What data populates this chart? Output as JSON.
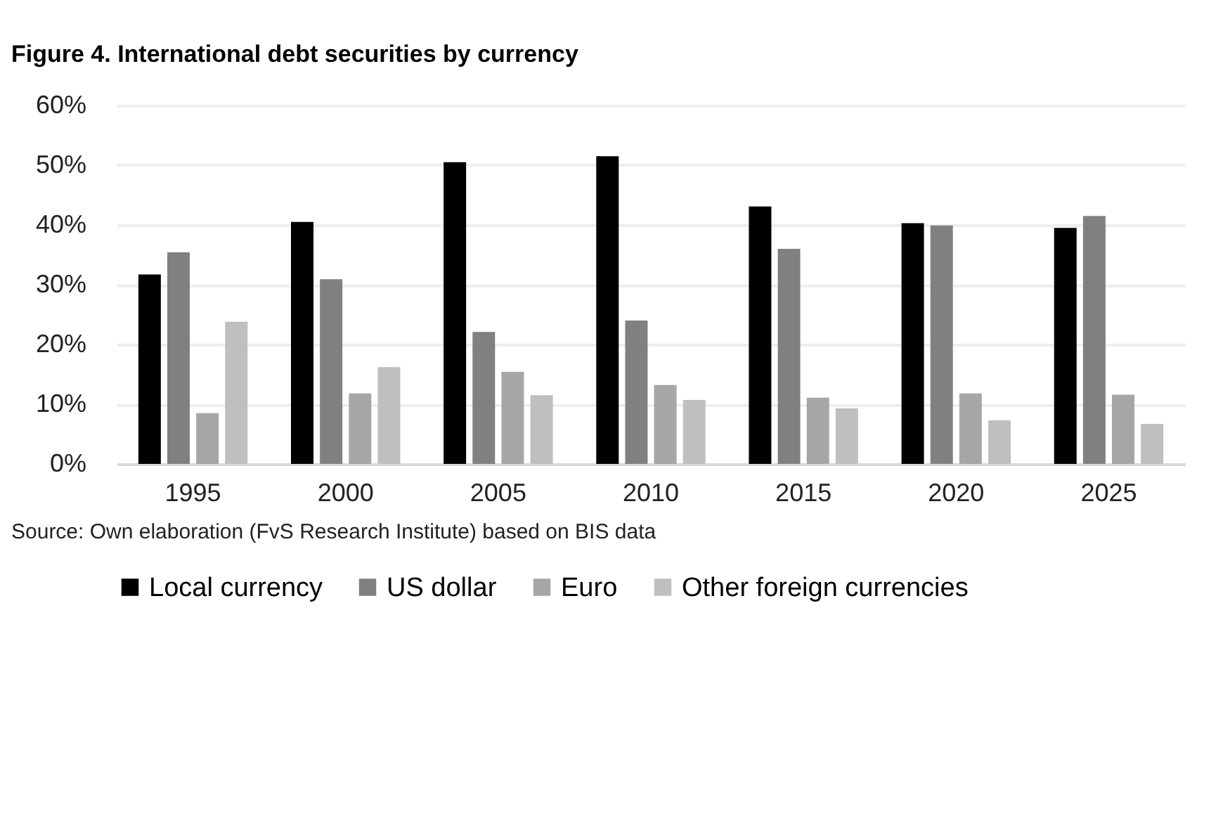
{
  "chart_data": {
    "type": "bar",
    "title": "Figure 4. International debt securities by currency",
    "categories": [
      "1995",
      "2000",
      "2005",
      "2010",
      "2015",
      "2020",
      "2025"
    ],
    "series": [
      {
        "name": "Local currency",
        "color": "#000000",
        "values": [
          31.7,
          40.5,
          50.5,
          51.5,
          43.1,
          40.3,
          39.5
        ]
      },
      {
        "name": "US dollar",
        "color": "#808080",
        "values": [
          35.4,
          30.9,
          22.1,
          24.0,
          36.0,
          39.9,
          41.5
        ]
      },
      {
        "name": "Euro",
        "color": "#a6a6a6",
        "values": [
          8.5,
          11.8,
          15.4,
          13.2,
          11.1,
          11.8,
          11.6
        ]
      },
      {
        "name": "Other foreign currencies",
        "color": "#bfbfbf",
        "values": [
          23.8,
          16.2,
          11.5,
          10.7,
          9.3,
          7.3,
          6.7
        ]
      }
    ],
    "ylim": [
      0,
      60
    ],
    "yticks": [
      {
        "value": 0,
        "label": "0%"
      },
      {
        "value": 10,
        "label": "10%"
      },
      {
        "value": 20,
        "label": "20%"
      },
      {
        "value": 30,
        "label": "30%"
      },
      {
        "value": 40,
        "label": "40%"
      },
      {
        "value": 50,
        "label": "50%"
      },
      {
        "value": 60,
        "label": "60%"
      }
    ],
    "grid": "y",
    "legend": "bottom",
    "annotations": [
      "Source: Own elaboration (FvS Research Institute) based on BIS data"
    ]
  }
}
